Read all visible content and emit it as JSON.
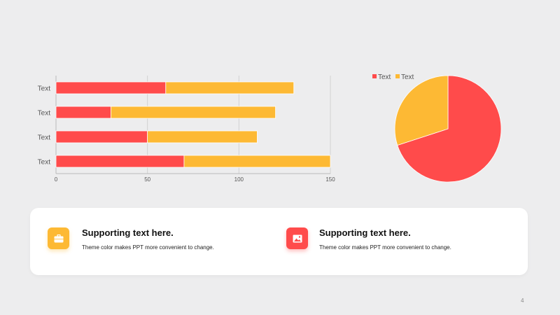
{
  "chart_data": [
    {
      "type": "bar",
      "orientation": "horizontal",
      "stacked": true,
      "categories": [
        "Text",
        "Text",
        "Text",
        "Text"
      ],
      "series": [
        {
          "color": "#ff4b4b",
          "values": [
            70,
            50,
            30,
            60
          ]
        },
        {
          "color": "#fdb934",
          "values": [
            80,
            60,
            90,
            70
          ]
        }
      ],
      "xlim": [
        0,
        150
      ],
      "xticks": [
        0,
        50,
        100,
        150
      ],
      "grid": true
    },
    {
      "type": "pie",
      "labels": [
        "Text",
        "Text"
      ],
      "colors": [
        "#ff4b4b",
        "#fdb934"
      ],
      "values": [
        70,
        30
      ],
      "legend_position": "top"
    }
  ],
  "features": [
    {
      "title": "Supporting text here.",
      "text": "Theme  color makes PPT more convenient  to change.",
      "icon": "briefcase-icon",
      "color": "#fdb934"
    },
    {
      "title": "Supporting text here.",
      "text": "Theme  color makes PPT more convenient  to change.",
      "icon": "image-icon",
      "color": "#ff4b4b"
    }
  ],
  "page_number": "4"
}
